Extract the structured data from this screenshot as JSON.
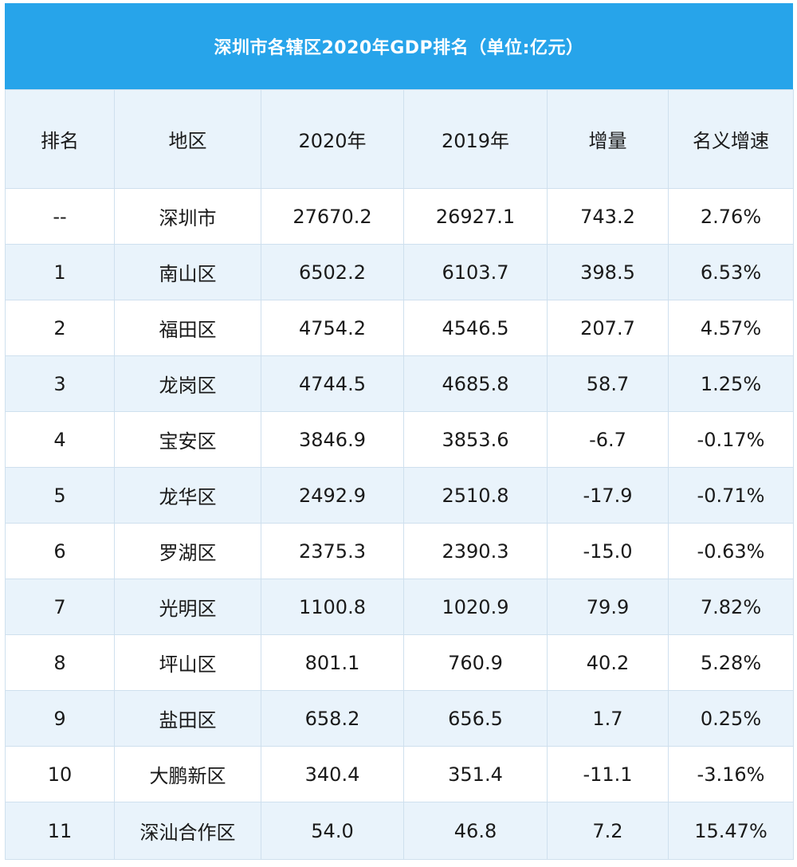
{
  "title": "深圳市各辖区2020年GDP排名（单位:亿元）",
  "headers": [
    "排名",
    "地区",
    "2020年",
    "2019年",
    "增量",
    "名义增速"
  ],
  "rows": [
    {
      "rank": "--",
      "region": "深圳市",
      "y2020": "27670.2",
      "y2019": "26927.1",
      "increase": "743.2",
      "growth": "2.76%"
    },
    {
      "rank": "1",
      "region": "南山区",
      "y2020": "6502.2",
      "y2019": "6103.7",
      "increase": "398.5",
      "growth": "6.53%"
    },
    {
      "rank": "2",
      "region": "福田区",
      "y2020": "4754.2",
      "y2019": "4546.5",
      "increase": "207.7",
      "growth": "4.57%"
    },
    {
      "rank": "3",
      "region": "龙岗区",
      "y2020": "4744.5",
      "y2019": "4685.8",
      "increase": "58.7",
      "growth": "1.25%"
    },
    {
      "rank": "4",
      "region": "宝安区",
      "y2020": "3846.9",
      "y2019": "3853.6",
      "increase": "-6.7",
      "growth": "-0.17%"
    },
    {
      "rank": "5",
      "region": "龙华区",
      "y2020": "2492.9",
      "y2019": "2510.8",
      "increase": "-17.9",
      "growth": "-0.71%"
    },
    {
      "rank": "6",
      "region": "罗湖区",
      "y2020": "2375.3",
      "y2019": "2390.3",
      "increase": "-15.0",
      "growth": "-0.63%"
    },
    {
      "rank": "7",
      "region": "光明区",
      "y2020": "1100.8",
      "y2019": "1020.9",
      "increase": "79.9",
      "growth": "7.82%"
    },
    {
      "rank": "8",
      "region": "坪山区",
      "y2020": "801.1",
      "y2019": "760.9",
      "increase": "40.2",
      "growth": "5.28%"
    },
    {
      "rank": "9",
      "region": "盐田区",
      "y2020": "658.2",
      "y2019": "656.5",
      "increase": "1.7",
      "growth": "0.25%"
    },
    {
      "rank": "10",
      "region": "大鹏新区",
      "y2020": "340.4",
      "y2019": "351.4",
      "increase": "-11.1",
      "growth": "-3.16%"
    },
    {
      "rank": "11",
      "region": "深汕合作区",
      "y2020": "54.0",
      "y2019": "46.8",
      "increase": "7.2",
      "growth": "15.47%"
    }
  ],
  "colors": {
    "title_bg": "#27a4ea",
    "row_alt": "#e9f3fb",
    "border": "#cfe0ee"
  }
}
